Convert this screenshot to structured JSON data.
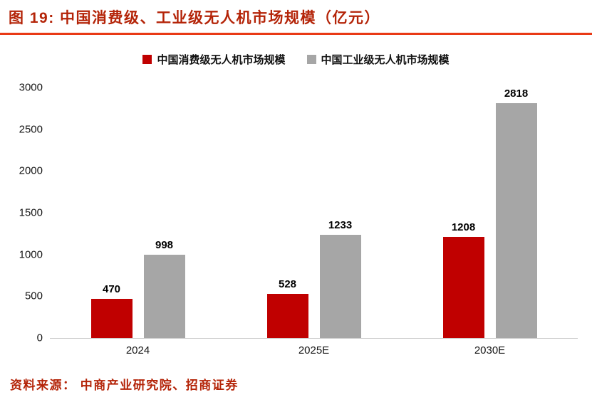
{
  "header": {
    "title": "图 19:  中国消费级、工业级无人机市场规模（亿元）"
  },
  "source": "资料来源：  中商产业研究院、招商证券",
  "colors": {
    "title_red": "#B42408",
    "rule_red": "#E93A16",
    "consumer_bar_red": "#C00000",
    "industrial_bar_gray": "#A6A6A6"
  },
  "chart_data": {
    "type": "bar",
    "title": "中国消费级、工业级无人机市场规模（亿元）",
    "categories": [
      "2024",
      "2025E",
      "2030E"
    ],
    "series": [
      {
        "name": "中国消费级无人机市场规模",
        "color": "#C00000",
        "values": [
          470,
          528,
          1208
        ]
      },
      {
        "name": "中国工业级无人机市场规模",
        "color": "#A6A6A6",
        "values": [
          998,
          1233,
          2818
        ]
      }
    ],
    "xlabel": "",
    "ylabel": "",
    "ylim": [
      0,
      3000
    ],
    "yticks": [
      0,
      500,
      1000,
      1500,
      2000,
      2500,
      3000
    ],
    "grid": false,
    "legend_position": "top",
    "data_labels": true
  }
}
